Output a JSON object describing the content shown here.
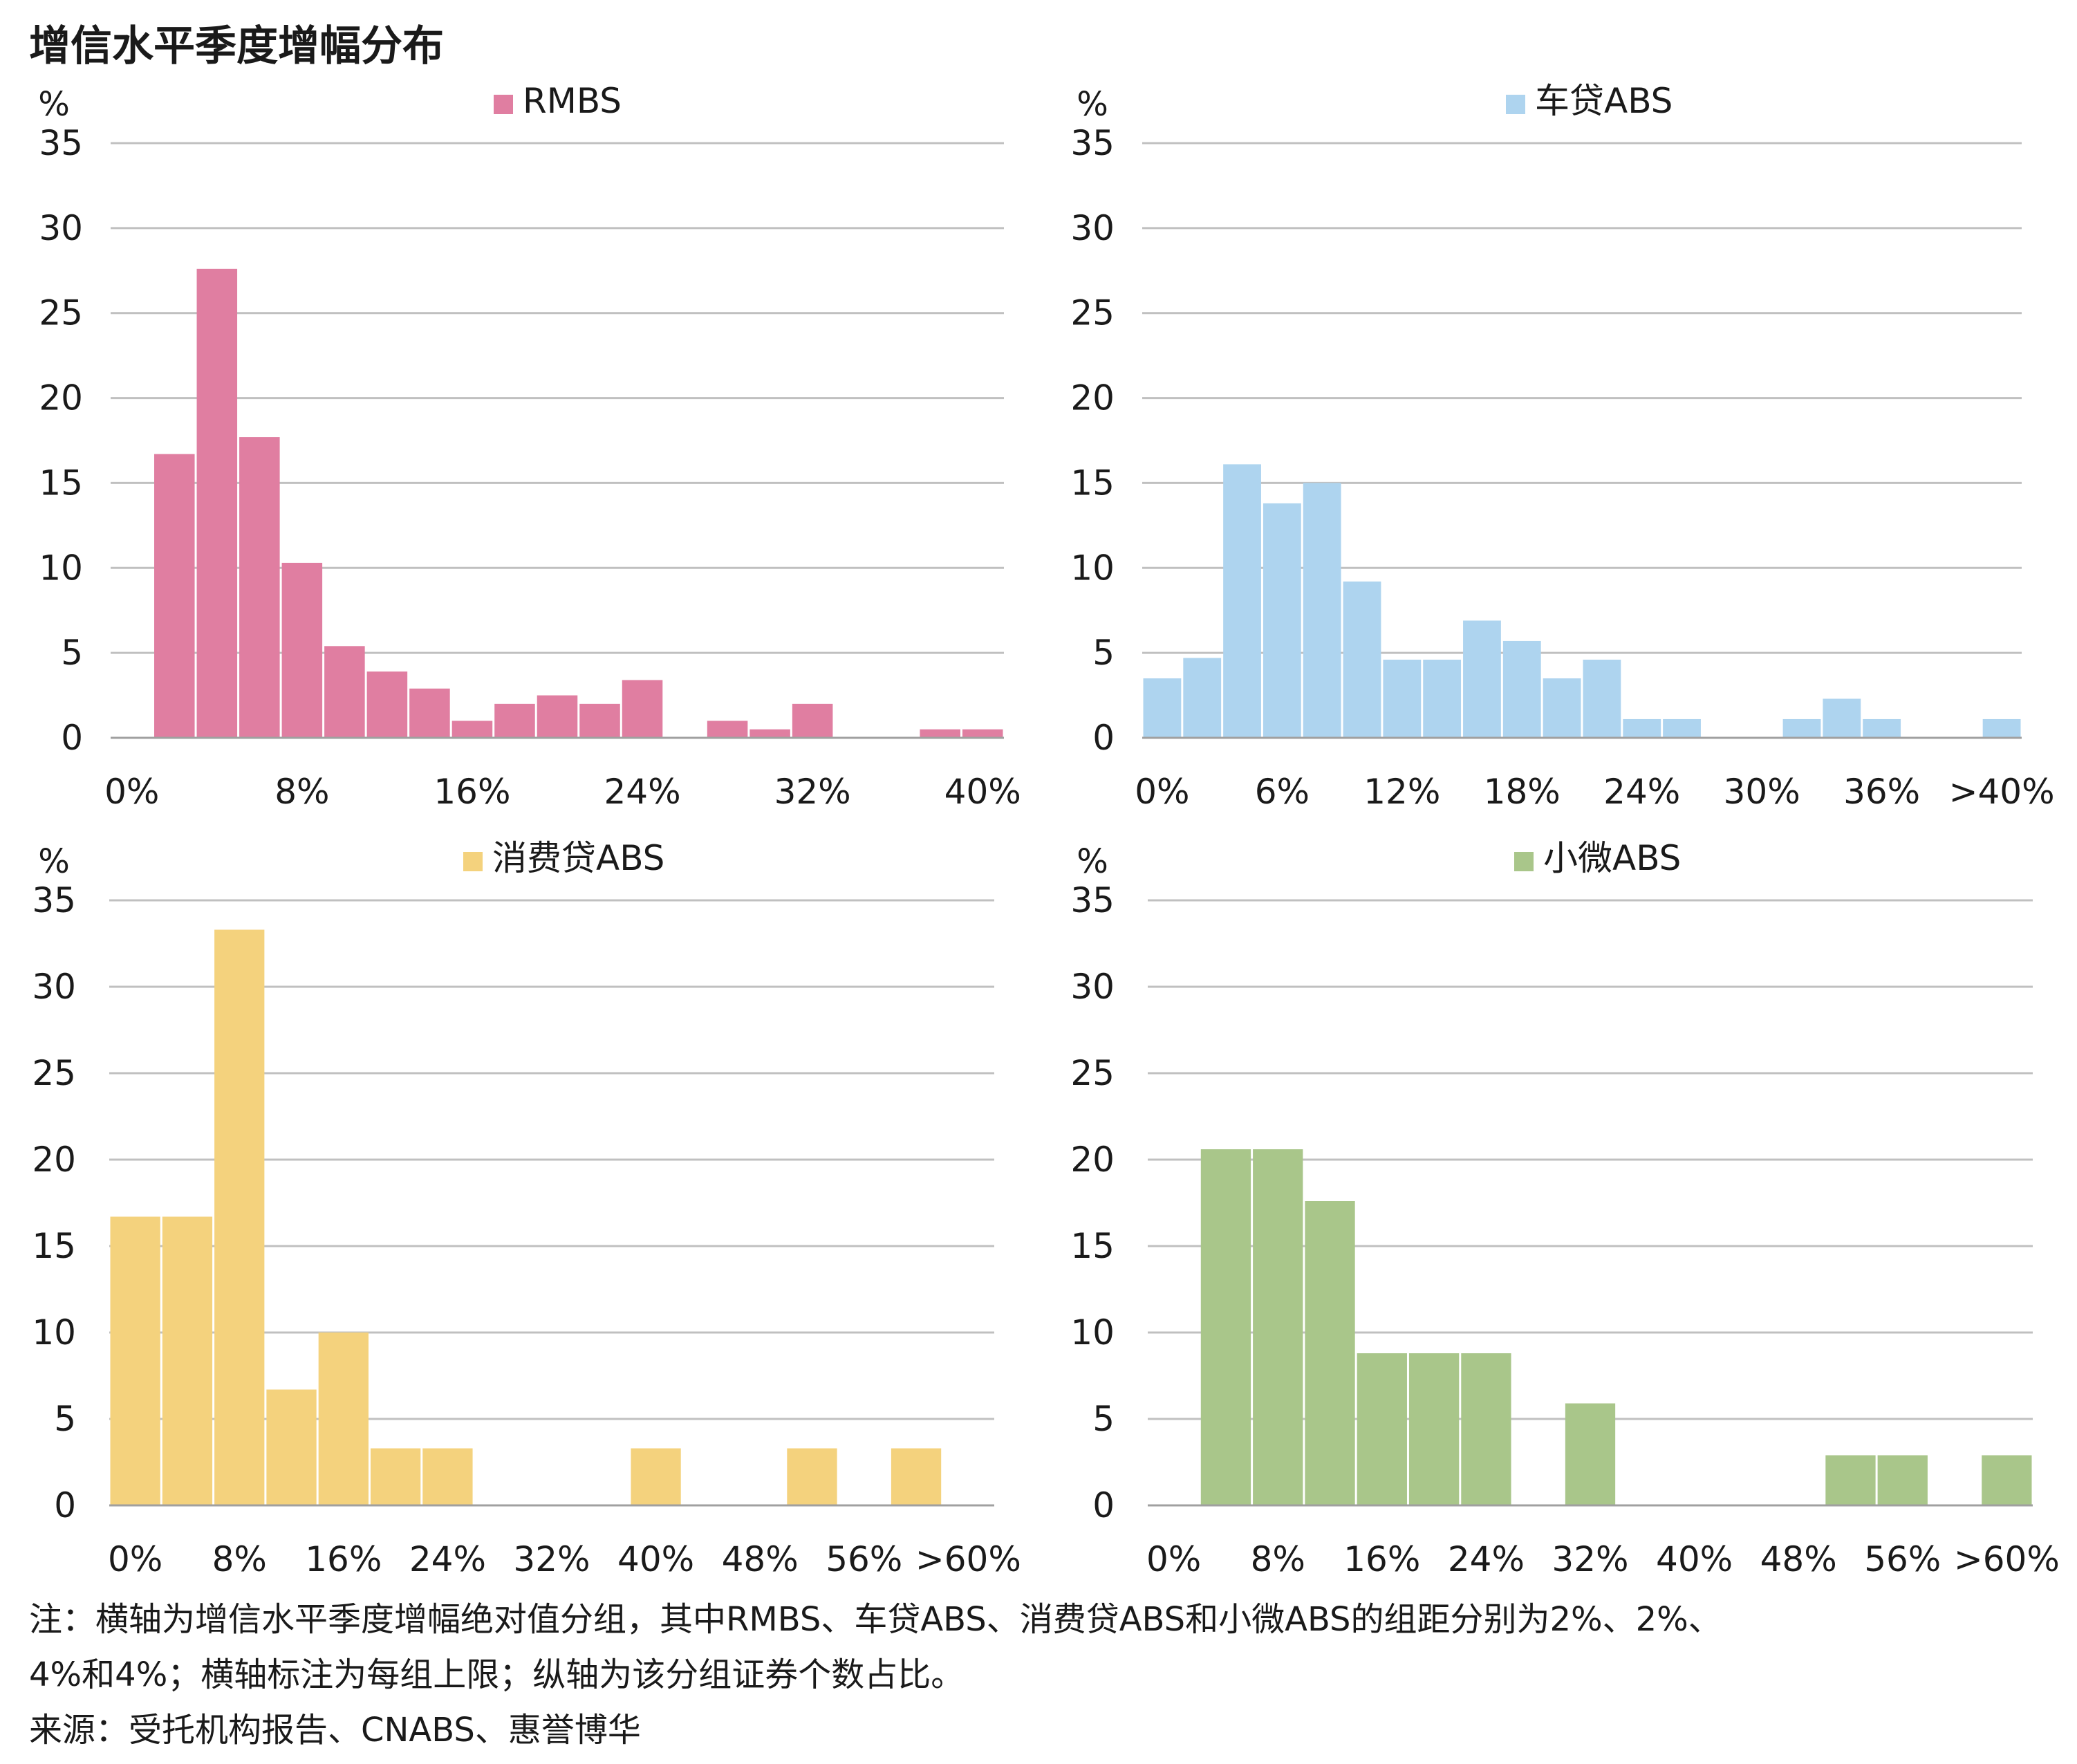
{
  "title": "增信水平季度增幅分布",
  "unit": "%",
  "colors": {
    "grid": "#c0c0c0",
    "axis": "#a0a0a0",
    "text": "#1a1a1a"
  },
  "notes": [
    "注：横轴为增信水平季度增幅绝对值分组，其中RMBS、车贷ABS、消费贷ABS和小微ABS的组距分别为2%、2%、",
    "4%和4%；横轴标注为每组上限；纵轴为该分组证券个数占比。",
    "来源：受托机构报告、CNABS、惠誉博华"
  ],
  "chart_data": [
    {
      "type": "bar",
      "legend": "RMBS",
      "color": "#e07ea1",
      "ylabel": "%",
      "ylim": [
        0,
        35
      ],
      "yticks": [
        0,
        5,
        10,
        15,
        20,
        25,
        30,
        35
      ],
      "bin_width": "2%",
      "bin_count": 21,
      "xtick_labels": [
        "0%",
        "8%",
        "16%",
        "24%",
        "32%",
        "40%"
      ],
      "xtick_bins": [
        0,
        4,
        8,
        12,
        16,
        20
      ],
      "values": [
        0,
        16.7,
        27.6,
        17.7,
        10.3,
        5.4,
        3.9,
        2.9,
        1.0,
        2.0,
        2.5,
        2.0,
        3.4,
        0,
        1.0,
        0.5,
        2.0,
        0,
        0,
        0.5,
        0.5
      ]
    },
    {
      "type": "bar",
      "legend": "车贷ABS",
      "color": "#aed4ef",
      "ylabel": "%",
      "ylim": [
        0,
        35
      ],
      "yticks": [
        0,
        5,
        10,
        15,
        20,
        25,
        30,
        35
      ],
      "bin_width": "2%",
      "bin_count": 22,
      "xtick_labels": [
        "0%",
        "6%",
        "12%",
        "18%",
        "24%",
        "30%",
        "36%",
        ">40%"
      ],
      "xtick_bins": [
        0,
        3,
        6,
        9,
        12,
        15,
        18,
        21
      ],
      "values": [
        3.5,
        4.7,
        16.1,
        13.8,
        15.0,
        9.2,
        4.6,
        4.6,
        6.9,
        5.7,
        3.5,
        4.6,
        1.1,
        1.1,
        0,
        0,
        1.1,
        2.3,
        1.1,
        0,
        0,
        1.1
      ]
    },
    {
      "type": "bar",
      "legend": "消费贷ABS",
      "color": "#f4d27d",
      "ylabel": "%",
      "ylim": [
        0,
        35
      ],
      "yticks": [
        0,
        5,
        10,
        15,
        20,
        25,
        30,
        35
      ],
      "bin_width": "4%",
      "bin_count": 17,
      "xtick_labels": [
        "0%",
        "8%",
        "16%",
        "24%",
        "32%",
        "40%",
        "48%",
        "56%",
        ">60%"
      ],
      "xtick_bins": [
        0,
        2,
        4,
        6,
        8,
        10,
        12,
        14,
        16
      ],
      "values": [
        16.7,
        16.7,
        33.3,
        6.7,
        10.0,
        3.3,
        3.3,
        0,
        0,
        0,
        3.3,
        0,
        0,
        3.3,
        0,
        3.3,
        0
      ]
    },
    {
      "type": "bar",
      "legend": "小微ABS",
      "color": "#a9c68a",
      "ylabel": "%",
      "ylim": [
        0,
        35
      ],
      "yticks": [
        0,
        5,
        10,
        15,
        20,
        25,
        30,
        35
      ],
      "bin_width": "4%",
      "bin_count": 17,
      "xtick_labels": [
        "0%",
        "8%",
        "16%",
        "24%",
        "32%",
        "40%",
        "48%",
        "56%",
        ">60%"
      ],
      "xtick_bins": [
        0,
        2,
        4,
        6,
        8,
        10,
        12,
        14,
        16
      ],
      "values": [
        0,
        20.6,
        20.6,
        17.6,
        8.8,
        8.8,
        8.8,
        0,
        5.9,
        0,
        0,
        0,
        0,
        2.9,
        2.9,
        0,
        2.9
      ]
    }
  ]
}
